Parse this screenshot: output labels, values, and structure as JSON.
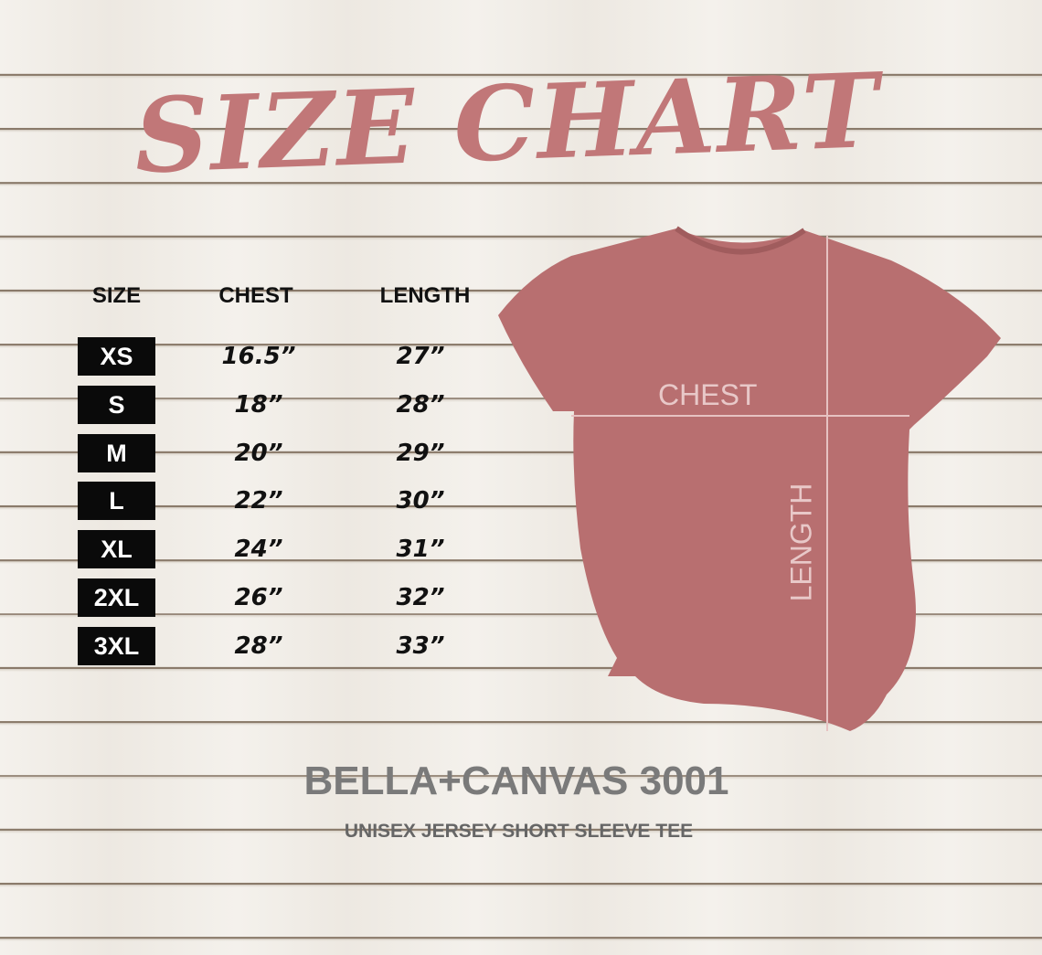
{
  "title": "SIZE CHART",
  "table": {
    "headers": [
      "SIZE",
      "CHEST",
      "LENGTH"
    ],
    "rows": [
      {
        "size": "XS",
        "chest": "16.5”",
        "length": "27”"
      },
      {
        "size": "S",
        "chest": "18”",
        "length": "28”"
      },
      {
        "size": "M",
        "chest": "20”",
        "length": "29”"
      },
      {
        "size": "L",
        "chest": "22”",
        "length": "30”"
      },
      {
        "size": "XL",
        "chest": "24”",
        "length": "31”"
      },
      {
        "size": "2XL",
        "chest": "26”",
        "length": "32”"
      },
      {
        "size": "3XL",
        "chest": "28”",
        "length": "33”"
      }
    ]
  },
  "shirt": {
    "chest_label": "CHEST",
    "length_label": "LENGTH",
    "color": "#b86f70"
  },
  "brand": "BELLA+CANVAS 3001",
  "subtitle": "UNISEX JERSEY SHORT SLEEVE TEE",
  "colors": {
    "title": "#c17778",
    "size_box": "#0a0a0a"
  }
}
